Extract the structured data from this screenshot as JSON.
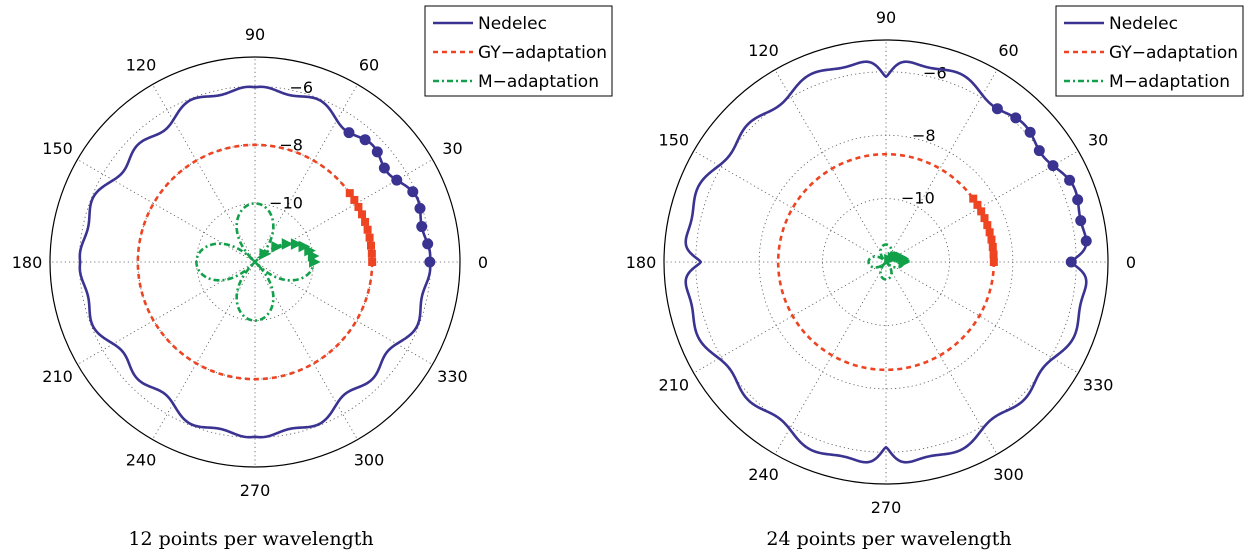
{
  "colors": {
    "nedelec": "#3a3391",
    "gy": "#ee4422",
    "m": "#12a04a",
    "grid": "#555555"
  },
  "chart_data": [
    {
      "type": "polar",
      "caption": "12 points per wavelength",
      "angle_ticks": [
        "0",
        "30",
        "60",
        "90",
        "120",
        "150",
        "180",
        "210",
        "240",
        "270",
        "300",
        "330"
      ],
      "r_range": [
        -12,
        -5
      ],
      "r_ticks": [
        "-6",
        "-8",
        "-10"
      ],
      "legend": [
        "Nedelec",
        "GY−adaptation",
        "M−adaptation"
      ],
      "series": [
        {
          "name": "Nedelec",
          "formula": "r = -6.2 + 0.28*cos(4*theta) + 0.14*cos(16*theta) - 0.20*exp(-(|theta-90deg|/9deg)^2)*mirrored",
          "markers_theta_deg": [
            0,
            6,
            12,
            18,
            24,
            30,
            36,
            42,
            48,
            54
          ]
        },
        {
          "name": "GY−adaptation",
          "r": -8.0,
          "markers_theta_deg": [
            0,
            4,
            8,
            12,
            16,
            20,
            24,
            28,
            32,
            36
          ]
        },
        {
          "name": "M−adaptation",
          "formula": "r = -12 + 2.0*|cos(2*theta)|^0.7",
          "markers_theta_deg": [
            0,
            6,
            12,
            18,
            24,
            30,
            36,
            42
          ]
        }
      ]
    },
    {
      "type": "polar",
      "caption": "24 points per wavelength",
      "angle_ticks": [
        "0",
        "30",
        "60",
        "90",
        "120",
        "150",
        "180",
        "210",
        "240",
        "270",
        "300",
        "330"
      ],
      "r_range": [
        -12,
        -5
      ],
      "r_ticks": [
        "-6",
        "-8",
        "-10"
      ],
      "legend": [
        "Nedelec",
        "GY−adaptation",
        "M−adaptation"
      ],
      "series": [
        {
          "name": "Nedelec",
          "formula": "r = -5.75 + 0.22*cos(4*theta) + 0.12*cos(16*theta) - cusps at 0/90/180/270 deg",
          "markers_theta_deg": [
            0,
            6,
            12,
            18,
            24,
            30,
            36,
            42,
            48,
            54
          ]
        },
        {
          "name": "GY−adaptation",
          "r": -8.6,
          "markers_theta_deg": [
            0,
            4,
            8,
            12,
            16,
            20,
            24,
            28,
            32,
            36
          ]
        },
        {
          "name": "M−adaptation",
          "formula": "r = -12 + 0.55*|cos(2*theta)|^0.7",
          "markers_theta_deg": [
            0,
            6,
            12,
            18,
            24,
            30,
            36,
            42
          ]
        }
      ]
    }
  ]
}
